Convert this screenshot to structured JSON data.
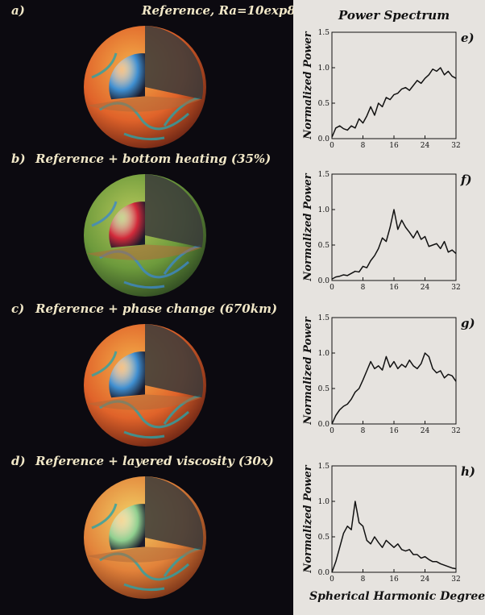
{
  "panels_left": [
    {
      "letter": "a)",
      "caption": "Reference, Ra=10exp8",
      "core_color": "#3f8fd1"
    },
    {
      "letter": "b)",
      "caption": "Reference + bottom heating (35%)",
      "core_color": "#d22a3a"
    },
    {
      "letter": "c)",
      "caption": "Reference + phase change (670km)",
      "core_color": "#3f8fd1"
    },
    {
      "letter": "d)",
      "caption": "Reference + layered viscosity (30x)",
      "core_color": "#8fcf8f"
    }
  ],
  "right_title": "Power Spectrum",
  "bottom_xlabel": "Spherical Harmonic Degree",
  "chart_data": [
    {
      "type": "line",
      "letter": "e)",
      "ylabel": "Normalized Power",
      "xlim": [
        0,
        32
      ],
      "ylim": [
        0,
        1.5
      ],
      "xticks": [
        "0",
        "8",
        "16",
        "24",
        "32"
      ],
      "yticks": [
        "0.0",
        "0.5",
        "1.0",
        "1.5"
      ],
      "series": [
        {
          "values": [
            0.02,
            0.15,
            0.18,
            0.14,
            0.12,
            0.18,
            0.15,
            0.28,
            0.22,
            0.32,
            0.45,
            0.33,
            0.5,
            0.45,
            0.58,
            0.55,
            0.62,
            0.64,
            0.7,
            0.72,
            0.68,
            0.75,
            0.82,
            0.78,
            0.85,
            0.9,
            0.98,
            0.95,
            1.0,
            0.9,
            0.95,
            0.88,
            0.85
          ]
        }
      ]
    },
    {
      "type": "line",
      "letter": "f)",
      "ylabel": "Normalized Power",
      "xlim": [
        0,
        32
      ],
      "ylim": [
        0,
        1.5
      ],
      "xticks": [
        "0",
        "8",
        "16",
        "24",
        "32"
      ],
      "yticks": [
        "0.0",
        "0.5",
        "1.0",
        "1.5"
      ],
      "series": [
        {
          "values": [
            0.02,
            0.05,
            0.06,
            0.08,
            0.07,
            0.1,
            0.13,
            0.12,
            0.2,
            0.18,
            0.28,
            0.35,
            0.45,
            0.6,
            0.55,
            0.75,
            1.0,
            0.72,
            0.85,
            0.75,
            0.68,
            0.6,
            0.7,
            0.58,
            0.62,
            0.48,
            0.5,
            0.52,
            0.45,
            0.55,
            0.4,
            0.43,
            0.38
          ]
        }
      ]
    },
    {
      "type": "line",
      "letter": "g)",
      "ylabel": "Normalized Power",
      "xlim": [
        0,
        32
      ],
      "ylim": [
        0,
        1.5
      ],
      "xticks": [
        "0",
        "8",
        "16",
        "24",
        "32"
      ],
      "yticks": [
        "0.0",
        "0.5",
        "1.0",
        "1.5"
      ],
      "series": [
        {
          "values": [
            0.0,
            0.12,
            0.2,
            0.25,
            0.28,
            0.35,
            0.45,
            0.5,
            0.62,
            0.75,
            0.88,
            0.78,
            0.82,
            0.76,
            0.95,
            0.8,
            0.88,
            0.78,
            0.84,
            0.8,
            0.9,
            0.82,
            0.78,
            0.85,
            1.0,
            0.95,
            0.78,
            0.72,
            0.75,
            0.65,
            0.7,
            0.68,
            0.6
          ]
        }
      ]
    },
    {
      "type": "line",
      "letter": "h)",
      "ylabel": "Normalized Power",
      "xlim": [
        0,
        32
      ],
      "ylim": [
        0,
        1.5
      ],
      "xticks": [
        "0",
        "8",
        "16",
        "24",
        "32"
      ],
      "yticks": [
        "0.0",
        "0.5",
        "1.0",
        "1.5"
      ],
      "series": [
        {
          "values": [
            0.0,
            0.15,
            0.35,
            0.55,
            0.65,
            0.6,
            1.0,
            0.7,
            0.65,
            0.45,
            0.4,
            0.5,
            0.42,
            0.35,
            0.45,
            0.4,
            0.35,
            0.4,
            0.32,
            0.3,
            0.32,
            0.25,
            0.25,
            0.2,
            0.22,
            0.18,
            0.15,
            0.15,
            0.12,
            0.1,
            0.08,
            0.06,
            0.05
          ]
        }
      ]
    }
  ]
}
